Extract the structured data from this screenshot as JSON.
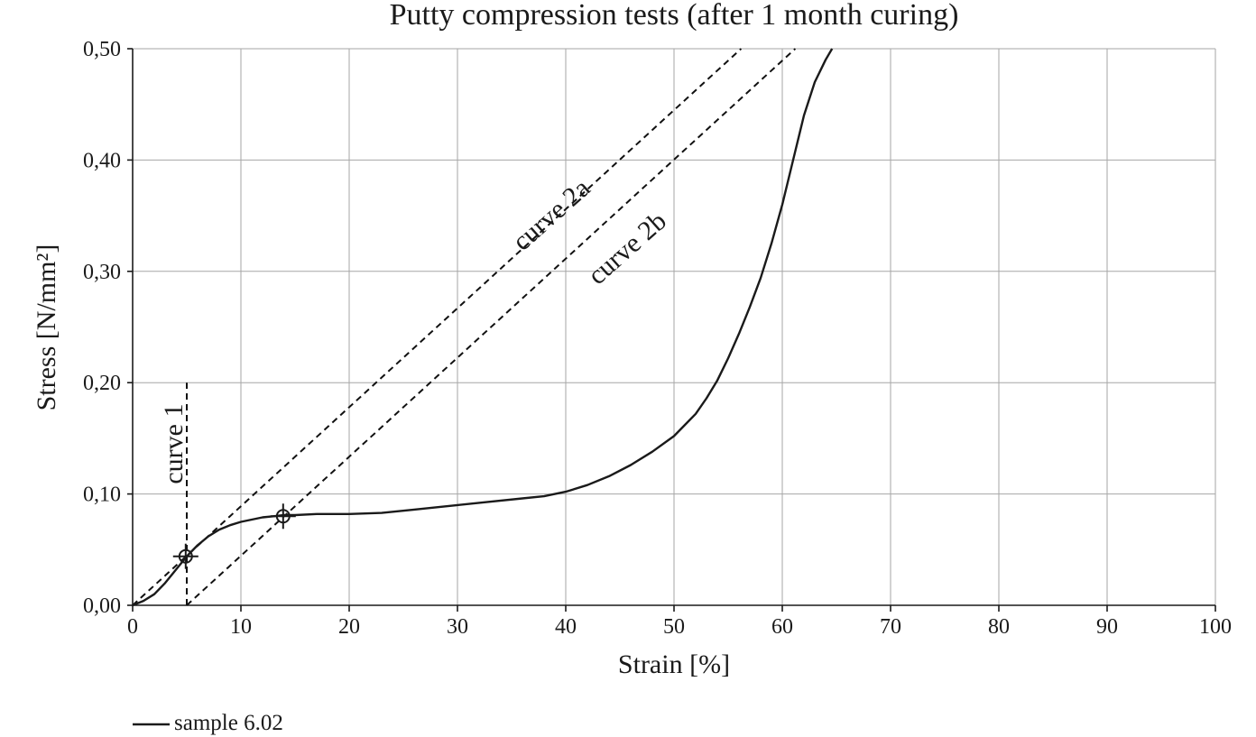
{
  "chart_data": {
    "type": "line",
    "title": "Putty compression tests (after 1 month curing)",
    "xlabel": "Strain [%]",
    "ylabel": "Stress [N/mm²]",
    "xlim": [
      0,
      100
    ],
    "ylim": [
      0,
      0.5
    ],
    "grid": true,
    "x_ticks": [
      0,
      10,
      20,
      30,
      40,
      50,
      60,
      70,
      80,
      90,
      100
    ],
    "x_tick_labels": [
      "0",
      "10",
      "20",
      "30",
      "40",
      "50",
      "60",
      "70",
      "80",
      "90",
      "100"
    ],
    "y_ticks": [
      0,
      0.1,
      0.2,
      0.3,
      0.4,
      0.5
    ],
    "y_tick_labels": [
      "0,00",
      "0,10",
      "0,20",
      "0,30",
      "0,40",
      "0,50"
    ],
    "legend": {
      "position": "bottom-left",
      "entries": [
        "sample 6.02"
      ]
    },
    "series": [
      {
        "name": "sample 6.02",
        "style": "solid",
        "color": "#1a1a1a",
        "x": [
          0,
          1,
          2,
          3,
          4,
          5,
          6,
          7,
          8,
          9,
          10,
          11,
          12,
          13,
          14,
          15,
          17,
          20,
          23,
          26,
          30,
          33,
          36,
          38,
          40,
          42,
          44,
          46,
          48,
          50,
          52,
          53,
          54,
          55,
          56,
          57,
          58,
          59,
          60,
          61,
          62,
          63,
          64,
          64.6
        ],
        "y": [
          0,
          0.004,
          0.01,
          0.02,
          0.032,
          0.044,
          0.054,
          0.062,
          0.068,
          0.072,
          0.075,
          0.077,
          0.079,
          0.08,
          0.081,
          0.081,
          0.082,
          0.082,
          0.083,
          0.086,
          0.09,
          0.093,
          0.096,
          0.098,
          0.102,
          0.108,
          0.116,
          0.126,
          0.138,
          0.152,
          0.172,
          0.186,
          0.202,
          0.222,
          0.244,
          0.268,
          0.294,
          0.325,
          0.36,
          0.4,
          0.44,
          0.47,
          0.49,
          0.5
        ]
      }
    ],
    "reference_lines": [
      {
        "name": "curve 1",
        "style": "dashed",
        "x": [
          5,
          5
        ],
        "y": [
          0,
          0.2
        ]
      },
      {
        "name": "curve 2a",
        "style": "dashed",
        "x": [
          0,
          56.2
        ],
        "y": [
          0,
          0.5
        ]
      },
      {
        "name": "curve 2b",
        "style": "dashed",
        "x": [
          5,
          61.2
        ],
        "y": [
          0,
          0.5
        ]
      }
    ],
    "markers": [
      {
        "x": 4.9,
        "y": 0.044
      },
      {
        "x": 13.9,
        "y": 0.08
      }
    ],
    "annotations": [
      {
        "text": "curve 1",
        "x": 4.6,
        "y": 0.145,
        "rotation": -90
      },
      {
        "text": "curve 2a",
        "x": 39.2,
        "y": 0.345,
        "rotation": -41.6
      },
      {
        "text": "curve 2b",
        "x": 46.2,
        "y": 0.315,
        "rotation": -41.6
      }
    ]
  }
}
